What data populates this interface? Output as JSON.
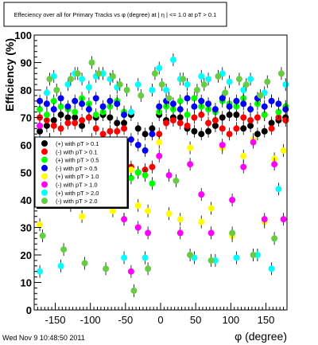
{
  "chart_data": {
    "type": "scatter",
    "title": "Effeciency over all for Primary Tracks vs φ (degree) at | η | <= 1.0 at pT > 0.1",
    "xlabel": "φ (degree)",
    "ylabel": "Efficiency (%)",
    "xlim": [
      -180,
      180
    ],
    "ylim": [
      0,
      100
    ],
    "x_ticks": [
      -150,
      -100,
      -50,
      0,
      50,
      100,
      150
    ],
    "y_ticks": [
      0,
      10,
      20,
      30,
      40,
      50,
      60,
      70,
      80,
      90,
      100
    ],
    "grid": false,
    "legend_position": "left-middle",
    "series": [
      {
        "name": "(+) with pT > 0.1",
        "color": "#000000",
        "x": [
          -172,
          -162,
          -152,
          -142,
          -132,
          -122,
          -112,
          -102,
          -92,
          -82,
          -72,
          -62,
          -52,
          -42,
          -32,
          -22,
          -12,
          -2,
          8,
          18,
          28,
          38,
          48,
          58,
          68,
          78,
          88,
          98,
          108,
          118,
          128,
          138,
          148,
          158,
          168,
          178
        ],
        "y": [
          65,
          67,
          69,
          71,
          70,
          70,
          67,
          70,
          70,
          71,
          70,
          68,
          68,
          71,
          66,
          64,
          66,
          71,
          69,
          70,
          70,
          66,
          65,
          64,
          65,
          67,
          70,
          71,
          71,
          66,
          67,
          64,
          65,
          68,
          69,
          70
        ]
      },
      {
        "name": "(-) with pT > 0.1",
        "color": "#ff0000",
        "x": [
          -172,
          -162,
          -152,
          -142,
          -132,
          -122,
          -112,
          -102,
          -92,
          -82,
          -72,
          -62,
          -52,
          -42,
          -32,
          -22,
          -12,
          -2,
          8,
          18,
          28,
          38,
          48,
          58,
          68,
          78,
          88,
          98,
          108,
          118,
          128,
          138,
          148,
          158,
          168,
          178
        ],
        "y": [
          70,
          69,
          67,
          66,
          68,
          68,
          69,
          70,
          66,
          64,
          65,
          65,
          66,
          52,
          50,
          51,
          52,
          64,
          68,
          69,
          68,
          67,
          70,
          71,
          68,
          69,
          66,
          64,
          66,
          70,
          69,
          70,
          71,
          66,
          70,
          69
        ]
      },
      {
        "name": "(+) with pT > 0.5",
        "color": "#00ff00",
        "x": [
          -172,
          -162,
          -152,
          -142,
          -132,
          -122,
          -112,
          -102,
          -92,
          -82,
          -72,
          -62,
          -52,
          -42,
          -32,
          -22,
          -12,
          -2,
          8,
          18,
          28,
          38,
          48,
          58,
          68,
          78,
          88,
          98,
          108,
          118,
          128,
          138,
          148,
          158,
          168,
          178
        ],
        "y": [
          73,
          71,
          76,
          74,
          73,
          72,
          77,
          75,
          71,
          72,
          74,
          76,
          72,
          48,
          50,
          49,
          46,
          72,
          74,
          73,
          76,
          71,
          77,
          74,
          73,
          72,
          76,
          75,
          74,
          77,
          73,
          75,
          71,
          76,
          72,
          74
        ]
      },
      {
        "name": "(-) with pT > 0.5",
        "color": "#0000ff",
        "x": [
          -172,
          -162,
          -152,
          -142,
          -132,
          -122,
          -112,
          -102,
          -92,
          -82,
          -72,
          -62,
          -52,
          -42,
          -32,
          -22,
          -12,
          -2,
          8,
          18,
          28,
          38,
          48,
          58,
          68,
          78,
          88,
          98,
          108,
          118,
          128,
          138,
          148,
          158,
          168,
          178
        ],
        "y": [
          76,
          75,
          73,
          77,
          74,
          76,
          75,
          73,
          77,
          74,
          76,
          75,
          71,
          62,
          60,
          58,
          64,
          74,
          76,
          75,
          73,
          77,
          74,
          76,
          75,
          73,
          77,
          74,
          76,
          75,
          73,
          77,
          74,
          76,
          75,
          73
        ]
      },
      {
        "name": "(+) with pT > 1.0",
        "color": "#ffff00",
        "x": [
          -172,
          -158,
          -142,
          -128,
          -112,
          -98,
          -82,
          -68,
          -52,
          -42,
          -32,
          -18,
          -2,
          12,
          28,
          42,
          58,
          72,
          88,
          102,
          118,
          132,
          148,
          162,
          175
        ],
        "y": [
          31,
          62,
          57,
          38,
          34,
          62,
          57,
          36,
          33,
          51,
          38,
          36,
          61,
          35,
          33,
          59,
          32,
          37,
          59,
          27,
          56,
          62,
          32,
          55,
          58
        ]
      },
      {
        "name": "(-) with pT > 1.0",
        "color": "#ff00ff",
        "x": [
          -172,
          -158,
          -142,
          -128,
          -112,
          -98,
          -82,
          -68,
          -52,
          -42,
          -32,
          -18,
          -2,
          12,
          28,
          42,
          58,
          72,
          88,
          102,
          118,
          132,
          148,
          162,
          175
        ],
        "y": [
          67,
          62,
          58,
          55,
          55,
          58,
          61,
          52,
          33,
          14,
          30,
          28,
          56,
          49,
          28,
          53,
          42,
          28,
          60,
          40,
          52,
          61,
          33,
          53,
          33
        ]
      },
      {
        "name": "(+) with pT > 2.0",
        "color": "#00ffff",
        "x": [
          -172,
          -162,
          -152,
          -142,
          -132,
          -122,
          -112,
          -102,
          -92,
          -82,
          -72,
          -62,
          -52,
          -42,
          -32,
          -22,
          -12,
          -2,
          8,
          18,
          28,
          38,
          48,
          58,
          68,
          78,
          88,
          98,
          108,
          118,
          128,
          138,
          148,
          158,
          168,
          178
        ],
        "y": [
          14,
          79,
          85,
          16,
          82,
          86,
          84,
          81,
          85,
          86,
          84,
          81,
          19,
          72,
          82,
          19,
          80,
          88,
          80,
          91,
          84,
          82,
          19,
          85,
          84,
          18,
          86,
          83,
          19,
          80,
          84,
          20,
          79,
          15,
          44,
          82
        ]
      },
      {
        "name": "(-) with pT > 2.0",
        "color": "#66cc44",
        "x": [
          -168,
          -158,
          -148,
          -138,
          -128,
          -118,
          -108,
          -98,
          -88,
          -78,
          -68,
          -58,
          -48,
          -38,
          -28,
          -18,
          -8,
          2,
          12,
          22,
          32,
          42,
          52,
          62,
          72,
          82,
          92,
          102,
          112,
          122,
          132,
          142,
          152,
          162,
          172
        ],
        "y": [
          27,
          84,
          80,
          22,
          84,
          86,
          17,
          90,
          86,
          15,
          85,
          82,
          80,
          7,
          78,
          15,
          86,
          82,
          77,
          47,
          84,
          20,
          80,
          82,
          18,
          85,
          79,
          28,
          84,
          82,
          20,
          78,
          83,
          26,
          86
        ]
      }
    ]
  },
  "footer": {
    "timestamp": "Wed Nov  9 10:48:50 2011"
  }
}
